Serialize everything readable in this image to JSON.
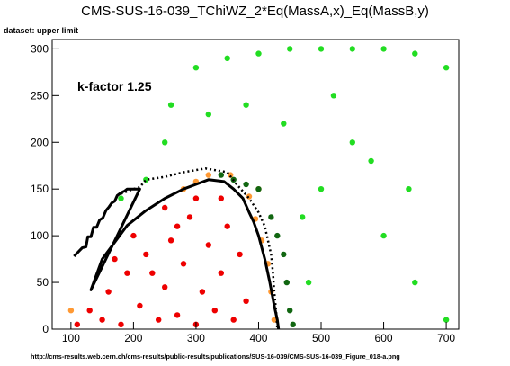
{
  "header": {
    "title": "CMS-SUS-16-039_TChiWZ_2*Eq(MassA,x)_Eq(MassB,y)",
    "dataset_label": "dataset: upper limit"
  },
  "annotation": {
    "kfactor": "k-factor 1.25"
  },
  "footer": {
    "url": "http://cms-results.web.cern.ch/cms-results/public-results/publications/SUS-16-039/CMS-SUS-16-039_Figure_018-a.png"
  },
  "colors": {
    "excluded": "#ee0000",
    "expected_band": "#ff9933",
    "allowed": "#22dd22",
    "boundary": "#116611",
    "contour": "#000000"
  },
  "chart_data": {
    "type": "scatter",
    "title": "CMS-SUS-16-039_TChiWZ_2*Eq(MassA,x)_Eq(MassB,y)",
    "xlabel": "",
    "ylabel": "",
    "xlim": [
      70,
      720
    ],
    "ylim": [
      0,
      310
    ],
    "x_ticks": [
      "100",
      "200",
      "300",
      "400",
      "500",
      "600",
      "700"
    ],
    "y_ticks": [
      "0",
      "50",
      "100",
      "150",
      "200",
      "250",
      "300"
    ],
    "grid": false,
    "series": [
      {
        "color": "#ee0000",
        "points": [
          [
            110,
            5
          ],
          [
            130,
            20
          ],
          [
            150,
            10
          ],
          [
            160,
            40
          ],
          [
            180,
            5
          ],
          [
            190,
            60
          ],
          [
            210,
            25
          ],
          [
            220,
            80
          ],
          [
            240,
            10
          ],
          [
            250,
            45
          ],
          [
            260,
            95
          ],
          [
            270,
            15
          ],
          [
            280,
            70
          ],
          [
            290,
            120
          ],
          [
            300,
            5
          ],
          [
            310,
            40
          ],
          [
            320,
            90
          ],
          [
            330,
            20
          ],
          [
            340,
            60
          ],
          [
            350,
            110
          ],
          [
            360,
            10
          ],
          [
            370,
            80
          ],
          [
            380,
            30
          ],
          [
            250,
            130
          ],
          [
            200,
            100
          ],
          [
            170,
            75
          ],
          [
            230,
            60
          ],
          [
            300,
            140
          ],
          [
            340,
            140
          ],
          [
            270,
            110
          ]
        ]
      },
      {
        "color": "#ff9933",
        "points": [
          [
            280,
            150
          ],
          [
            300,
            158
          ],
          [
            320,
            165
          ],
          [
            355,
            165
          ],
          [
            385,
            142
          ],
          [
            395,
            118
          ],
          [
            405,
            95
          ],
          [
            415,
            70
          ],
          [
            420,
            40
          ],
          [
            425,
            10
          ],
          [
            400,
            150
          ],
          [
            100,
            20
          ]
        ]
      },
      {
        "color": "#22dd22",
        "points": [
          [
            180,
            140
          ],
          [
            220,
            160
          ],
          [
            250,
            200
          ],
          [
            260,
            240
          ],
          [
            300,
            280
          ],
          [
            350,
            290
          ],
          [
            400,
            295
          ],
          [
            450,
            300
          ],
          [
            500,
            300
          ],
          [
            550,
            300
          ],
          [
            600,
            300
          ],
          [
            650,
            295
          ],
          [
            700,
            280
          ],
          [
            500,
            150
          ],
          [
            550,
            200
          ],
          [
            600,
            100
          ],
          [
            650,
            50
          ],
          [
            700,
            10
          ],
          [
            480,
            50
          ],
          [
            520,
            250
          ],
          [
            580,
            180
          ],
          [
            640,
            150
          ],
          [
            440,
            220
          ],
          [
            380,
            240
          ],
          [
            320,
            230
          ],
          [
            470,
            120
          ]
        ]
      },
      {
        "color": "#116611",
        "points": [
          [
            340,
            165
          ],
          [
            360,
            160
          ],
          [
            380,
            155
          ],
          [
            400,
            150
          ],
          [
            420,
            120
          ],
          [
            430,
            100
          ],
          [
            440,
            80
          ],
          [
            445,
            50
          ],
          [
            450,
            20
          ],
          [
            455,
            5
          ]
        ]
      }
    ],
    "contours": [
      {
        "style": "solid",
        "points": [
          [
            105,
            78
          ],
          [
            118,
            87
          ],
          [
            124,
            88
          ],
          [
            127,
            99
          ],
          [
            132,
            99
          ],
          [
            136,
            109
          ],
          [
            141,
            109
          ],
          [
            146,
            117
          ],
          [
            151,
            119
          ],
          [
            156,
            127
          ],
          [
            161,
            131
          ],
          [
            165,
            135
          ],
          [
            170,
            137
          ],
          [
            174,
            143
          ],
          [
            180,
            146
          ],
          [
            186,
            148
          ],
          [
            190,
            150
          ],
          [
            210,
            150
          ],
          [
            132,
            42
          ],
          [
            150,
            75
          ],
          [
            190,
            111
          ],
          [
            220,
            127
          ],
          [
            250,
            140
          ],
          [
            280,
            150
          ],
          [
            300,
            155
          ],
          [
            320,
            160
          ],
          [
            345,
            158
          ],
          [
            360,
            150
          ],
          [
            375,
            140
          ],
          [
            385,
            125
          ],
          [
            392,
            115
          ],
          [
            400,
            100
          ],
          [
            410,
            75
          ],
          [
            418,
            50
          ],
          [
            425,
            25
          ],
          [
            430,
            10
          ],
          [
            432,
            0
          ]
        ]
      },
      {
        "style": "dotted",
        "points": [
          [
            180,
            145
          ],
          [
            200,
            150
          ],
          [
            210,
            152
          ],
          [
            220,
            160
          ],
          [
            250,
            163
          ],
          [
            280,
            168
          ],
          [
            315,
            172
          ],
          [
            350,
            168
          ],
          [
            365,
            155
          ],
          [
            385,
            140
          ],
          [
            400,
            125
          ],
          [
            410,
            110
          ],
          [
            415,
            95
          ],
          [
            420,
            80
          ],
          [
            423,
            60
          ],
          [
            425,
            40
          ],
          [
            428,
            20
          ],
          [
            430,
            0
          ]
        ]
      }
    ]
  }
}
